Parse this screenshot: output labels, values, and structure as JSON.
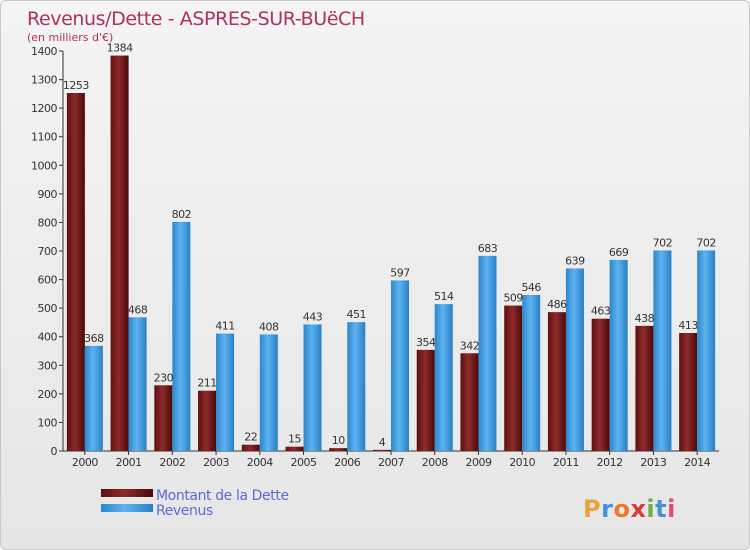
{
  "chart_data": {
    "type": "bar",
    "title": "Revenus/Dette - ASPRES-SUR-BUëCH",
    "subtitle": "(en milliers d'€)",
    "categories": [
      "2000",
      "2001",
      "2002",
      "2003",
      "2004",
      "2005",
      "2006",
      "2007",
      "2008",
      "2009",
      "2010",
      "2011",
      "2012",
      "2013",
      "2014"
    ],
    "series": [
      {
        "name": "Montant de la Dette",
        "color": "#7a1c1c",
        "values": [
          1253,
          1384,
          230,
          211,
          22,
          15,
          10,
          4,
          354,
          342,
          509,
          486,
          463,
          438,
          413
        ]
      },
      {
        "name": "Revenus",
        "color": "#3d9be0",
        "values": [
          368,
          468,
          802,
          411,
          408,
          443,
          451,
          597,
          514,
          683,
          546,
          639,
          669,
          702,
          702
        ]
      }
    ],
    "ylim": [
      0,
      1400
    ],
    "yticks": [
      0,
      100,
      200,
      300,
      400,
      500,
      600,
      700,
      800,
      900,
      1000,
      1100,
      1200,
      1300,
      1400
    ],
    "grid": false,
    "legend": "bottom-left",
    "xlabel": "",
    "ylabel": ""
  },
  "brand": {
    "text": "Proxiti",
    "colors": [
      "#e8a23a",
      "#4a90d9",
      "#e87a2a",
      "#d93a3a",
      "#6ab04c",
      "#4a90d9",
      "#e84a6a"
    ]
  },
  "colors": {
    "title": "#b03060",
    "legend_text": "#5a6ad9",
    "axis": "#333333"
  }
}
